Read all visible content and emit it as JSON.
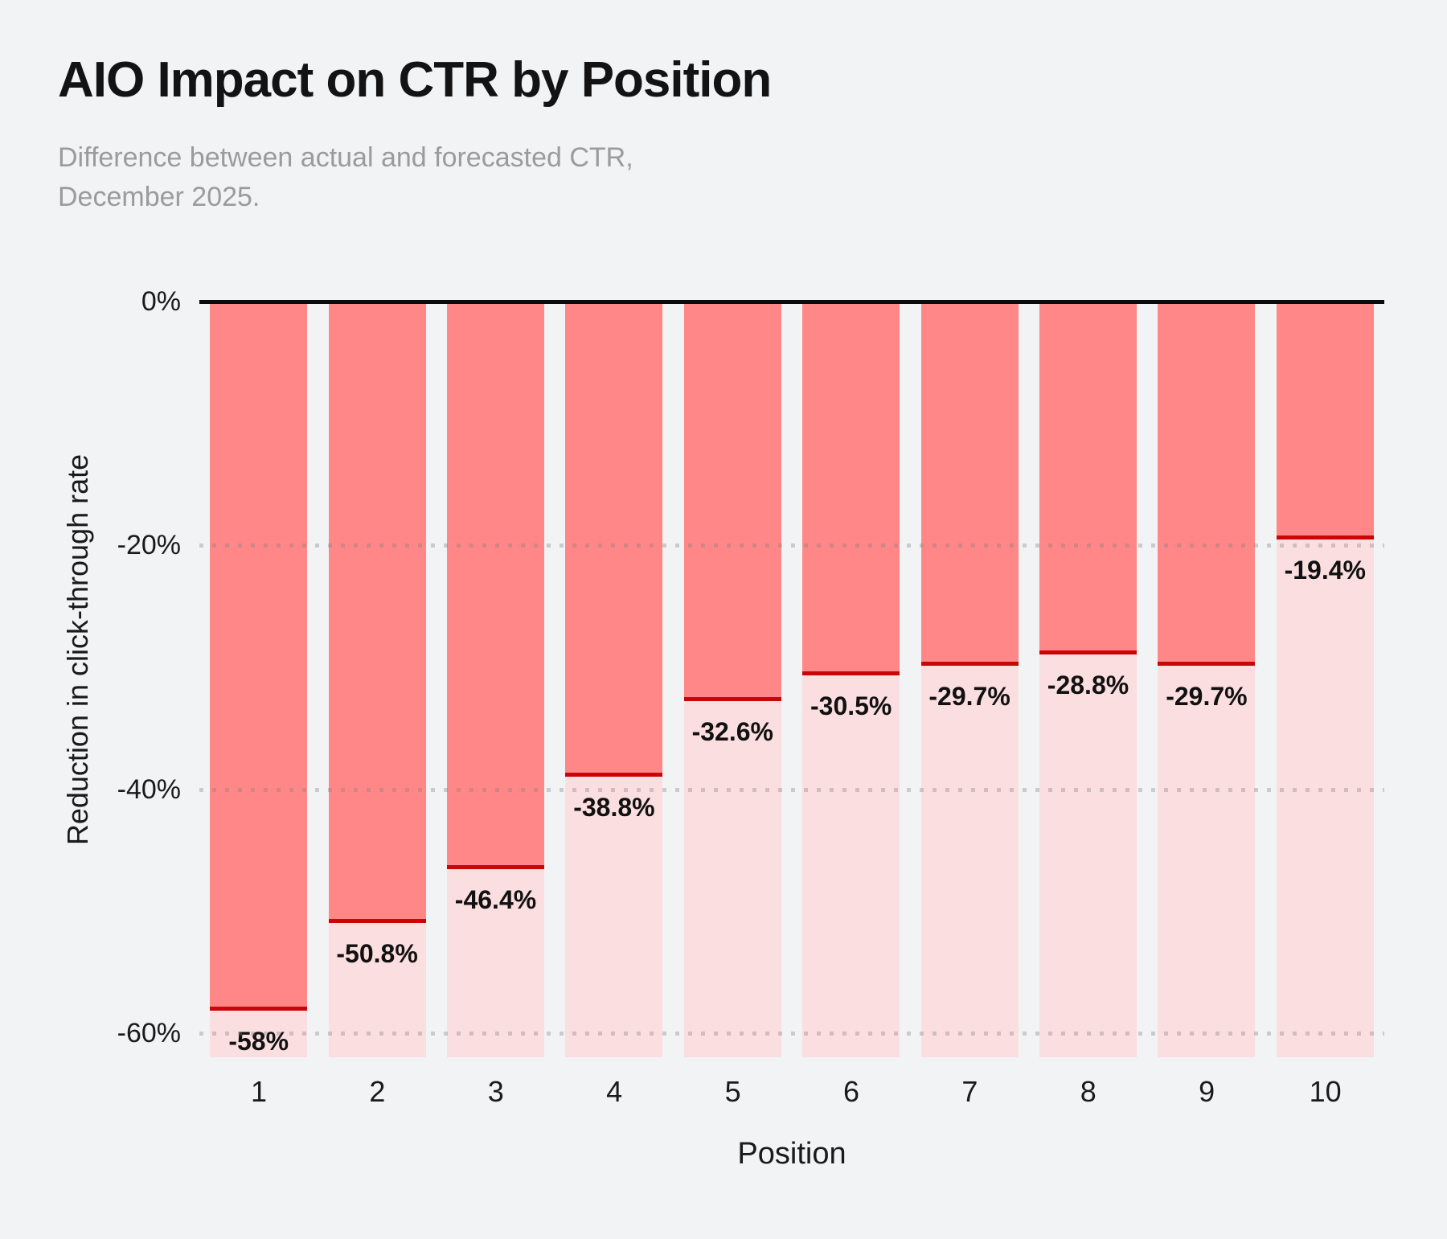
{
  "colors": {
    "background": "#F2F3F5",
    "bar_actual": "#FF8787",
    "bar_forecast_light": "#FBDEE0",
    "marker_line": "#C90606",
    "axis_line": "#0A0A0A",
    "title": "#131313",
    "subtitle": "#9B9B9B",
    "label": "#111111"
  },
  "header": {
    "title": "AIO Impact on CTR by Position",
    "subtitle_line1": "Difference between actual and forecasted CTR,",
    "subtitle_line2": "December 2025."
  },
  "chart_data": {
    "type": "bar",
    "orientation": "vertical",
    "title": "AIO Impact on CTR by Position",
    "subtitle": "Difference between actual and forecasted CTR, December 2025.",
    "categories": [
      "1",
      "2",
      "3",
      "4",
      "5",
      "6",
      "7",
      "8",
      "9",
      "10"
    ],
    "values": [
      -58,
      -50.8,
      -46.4,
      -38.8,
      -32.6,
      -30.5,
      -29.7,
      -28.8,
      -29.7,
      -19.4
    ],
    "value_labels": [
      "-58%",
      "-50.8%",
      "-46.4%",
      "-38.8%",
      "-32.6%",
      "-30.5%",
      "-29.7%",
      "-28.8%",
      "-29.7%",
      "-19.4%"
    ],
    "xlabel": "Position",
    "ylabel": "Reduction in click-through rate",
    "y_ticks": [
      {
        "value": 0,
        "label": "0%"
      },
      {
        "value": -20,
        "label": "-20%"
      },
      {
        "value": -40,
        "label": "-40%"
      },
      {
        "value": -60,
        "label": "-60%"
      }
    ],
    "ylim": [
      -62,
      0
    ],
    "grid": {
      "style": "dotted",
      "horizontal_at": [
        -20,
        -40,
        -60
      ],
      "drawn_over_bars": true
    },
    "legend": "none",
    "bar_style": "salmon fill from 0 down to value, dark red marker line at value, light pink fill from value down to -62% floor, value label printed below marker line inside bar"
  }
}
